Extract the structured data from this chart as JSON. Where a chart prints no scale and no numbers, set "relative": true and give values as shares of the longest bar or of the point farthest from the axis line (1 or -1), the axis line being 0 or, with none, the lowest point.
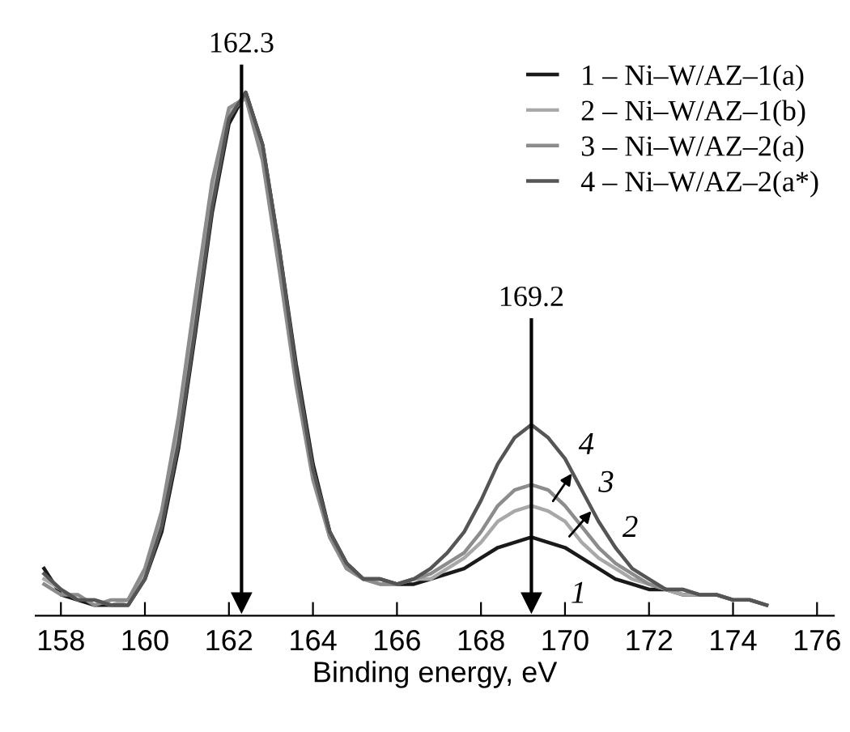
{
  "chart_data": {
    "type": "line",
    "relative": true,
    "xlabel": "Binding energy, eV",
    "x": [
      157.6,
      158.0,
      158.4,
      158.8,
      159.2,
      159.6,
      160.0,
      160.4,
      160.8,
      161.2,
      161.6,
      162.0,
      162.4,
      162.8,
      163.2,
      163.6,
      164.0,
      164.4,
      164.8,
      165.2,
      165.6,
      166.0,
      166.4,
      166.8,
      167.2,
      167.6,
      168.0,
      168.4,
      168.8,
      169.2,
      169.6,
      170.0,
      170.4,
      170.8,
      171.2,
      171.6,
      172.0,
      172.4,
      172.8,
      173.2,
      173.6,
      174.0,
      174.4,
      174.8
    ],
    "xlim": [
      157.4,
      176.4
    ],
    "xticks": [
      158,
      160,
      162,
      164,
      166,
      168,
      170,
      172,
      174,
      176
    ],
    "series": [
      {
        "name": "1 – Ni–W/AZ–1(a)",
        "color": "#1a1a1a",
        "values": [
          0.09,
          0.04,
          0.03,
          0.02,
          0.02,
          0.02,
          0.07,
          0.16,
          0.32,
          0.54,
          0.77,
          0.94,
          1.0,
          0.9,
          0.7,
          0.48,
          0.29,
          0.16,
          0.1,
          0.07,
          0.07,
          0.06,
          0.06,
          0.07,
          0.08,
          0.09,
          0.11,
          0.13,
          0.14,
          0.15,
          0.14,
          0.13,
          0.11,
          0.09,
          0.07,
          0.06,
          0.05,
          0.05,
          0.04,
          0.04,
          0.04,
          0.03,
          0.03,
          0.02
        ]
      },
      {
        "name": "2 – Ni–W/AZ–1(b)",
        "color": "#a8a8a8",
        "values": [
          0.07,
          0.05,
          0.03,
          0.03,
          0.02,
          0.03,
          0.08,
          0.18,
          0.35,
          0.58,
          0.8,
          0.96,
          0.99,
          0.88,
          0.68,
          0.46,
          0.27,
          0.15,
          0.09,
          0.07,
          0.06,
          0.06,
          0.07,
          0.07,
          0.09,
          0.11,
          0.14,
          0.18,
          0.2,
          0.21,
          0.2,
          0.18,
          0.14,
          0.11,
          0.09,
          0.07,
          0.06,
          0.05,
          0.04,
          0.04,
          0.04,
          0.03,
          0.03,
          0.02
        ]
      },
      {
        "name": "3 – Ni–W/AZ–2(a)",
        "color": "#8c8c8c",
        "values": [
          0.06,
          0.04,
          0.04,
          0.02,
          0.03,
          0.03,
          0.09,
          0.2,
          0.38,
          0.61,
          0.83,
          0.97,
          0.99,
          0.87,
          0.66,
          0.44,
          0.26,
          0.15,
          0.09,
          0.07,
          0.06,
          0.06,
          0.07,
          0.08,
          0.1,
          0.12,
          0.16,
          0.21,
          0.24,
          0.25,
          0.24,
          0.21,
          0.17,
          0.13,
          0.1,
          0.08,
          0.06,
          0.05,
          0.05,
          0.04,
          0.04,
          0.03,
          0.03,
          0.02
        ]
      },
      {
        "name": "4 – Ni–W/AZ–2(a*)",
        "color": "#555555",
        "values": [
          0.08,
          0.05,
          0.03,
          0.03,
          0.02,
          0.02,
          0.07,
          0.17,
          0.33,
          0.55,
          0.78,
          0.95,
          1.0,
          0.9,
          0.7,
          0.47,
          0.28,
          0.16,
          0.1,
          0.07,
          0.07,
          0.06,
          0.07,
          0.09,
          0.12,
          0.16,
          0.22,
          0.29,
          0.34,
          0.365,
          0.34,
          0.3,
          0.24,
          0.18,
          0.13,
          0.09,
          0.07,
          0.05,
          0.05,
          0.04,
          0.04,
          0.03,
          0.03,
          0.02
        ]
      }
    ],
    "ref_lines": [
      {
        "axis": "x",
        "value": 162.3,
        "label": "162.3"
      },
      {
        "axis": "x",
        "value": 169.2,
        "label": "169.2"
      }
    ],
    "annotations": [
      "4",
      "3",
      "2",
      "1"
    ],
    "legend": "top right",
    "grid": false
  }
}
